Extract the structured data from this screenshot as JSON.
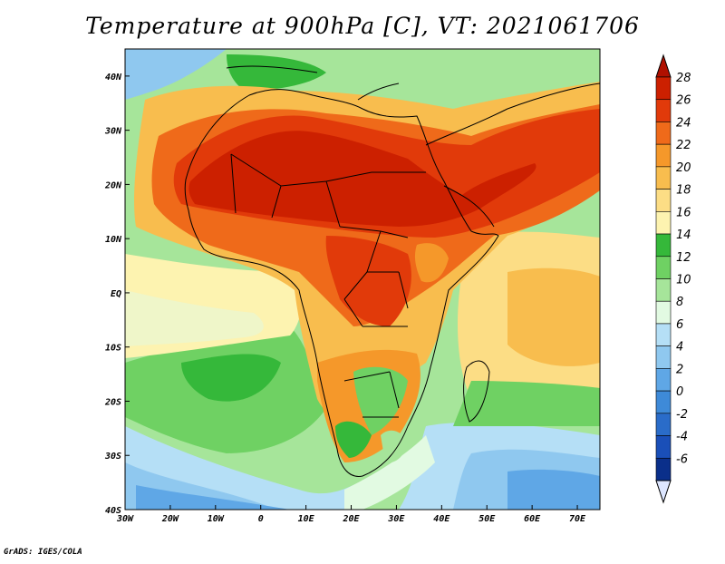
{
  "title": "Temperature at 900hPa [C], VT: 2021061706",
  "credit": "GrADS: IGES/COLA",
  "map": {
    "lon_range": [
      -30,
      75
    ],
    "lat_range": [
      -40,
      45
    ],
    "lon_ticks": [
      {
        "value": -30,
        "label": "30W"
      },
      {
        "value": -20,
        "label": "20W"
      },
      {
        "value": -10,
        "label": "10W"
      },
      {
        "value": 0,
        "label": "0"
      },
      {
        "value": 10,
        "label": "10E"
      },
      {
        "value": 20,
        "label": "20E"
      },
      {
        "value": 30,
        "label": "30E"
      },
      {
        "value": 40,
        "label": "40E"
      },
      {
        "value": 50,
        "label": "50E"
      },
      {
        "value": 60,
        "label": "60E"
      },
      {
        "value": 70,
        "label": "70E"
      }
    ],
    "lat_ticks": [
      {
        "value": 40,
        "label": "40N"
      },
      {
        "value": 30,
        "label": "30N"
      },
      {
        "value": 20,
        "label": "20N"
      },
      {
        "value": 10,
        "label": "10N"
      },
      {
        "value": 0,
        "label": "EQ"
      },
      {
        "value": -10,
        "label": "10S"
      },
      {
        "value": -20,
        "label": "20S"
      },
      {
        "value": -30,
        "label": "30S"
      },
      {
        "value": -40,
        "label": "40S"
      }
    ]
  },
  "colorbar": {
    "levels": [
      {
        "label": "28",
        "color": "#cc2000"
      },
      {
        "label": "26",
        "color": "#e13a0a"
      },
      {
        "label": "24",
        "color": "#ef6a1a"
      },
      {
        "label": "22",
        "color": "#f5982a"
      },
      {
        "label": "20",
        "color": "#f8bd4e"
      },
      {
        "label": "18",
        "color": "#fcdd85"
      },
      {
        "label": "16",
        "color": "#fdf3b0"
      },
      {
        "label": "14",
        "color": "#35b83a"
      },
      {
        "label": "12",
        "color": "#6fd163"
      },
      {
        "label": "10",
        "color": "#a6e59a"
      },
      {
        "label": "8",
        "color": "#e2fae2"
      },
      {
        "label": "6",
        "color": "#b5dff6"
      },
      {
        "label": "4",
        "color": "#8fc8ef"
      },
      {
        "label": "2",
        "color": "#5fa7e6"
      },
      {
        "label": "0",
        "color": "#3e8ad8"
      },
      {
        "label": "-2",
        "color": "#2a6cc9"
      },
      {
        "label": "-4",
        "color": "#1a4fb8"
      },
      {
        "label": "-6",
        "color": "#0a2f8a"
      }
    ],
    "top_arrow_color": "#b01000",
    "bottom_arrow_color": "#dde6ff"
  }
}
